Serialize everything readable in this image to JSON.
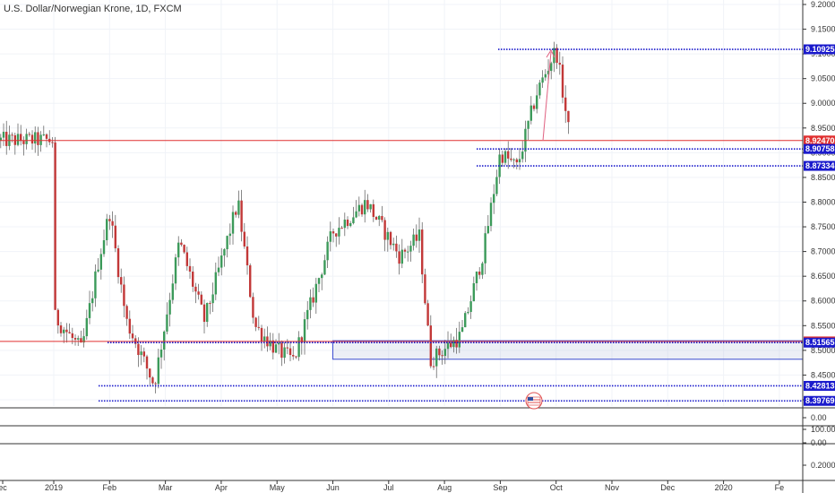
{
  "chart_data": {
    "type": "candlestick",
    "title": "U.S. Dollar/Norwegian Krone, 1D, FXCM",
    "ylim": [
      8.38,
      9.2
    ],
    "y_ticks": [
      "9.20000",
      "9.15000",
      "9.10000",
      "9.05000",
      "9.00000",
      "8.95000",
      "8.90000",
      "8.85000",
      "8.80000",
      "8.75000",
      "8.70000",
      "8.65000",
      "8.60000",
      "8.55000",
      "8.50000",
      "8.45000",
      "8.40000"
    ],
    "x_ticks": [
      "ec",
      "2019",
      "Feb",
      "Mar",
      "Apr",
      "May",
      "Jun",
      "Jul",
      "Aug",
      "Sep",
      "Oct",
      "Nov",
      "Dec",
      "2020",
      "Fe"
    ],
    "horizontal_lines": [
      {
        "label": "9.10925",
        "value": 9.10925,
        "color": "#1a1acc",
        "style": "dotted"
      },
      {
        "label": "8.92470",
        "value": 8.9247,
        "color": "#e03030",
        "style": "solid"
      },
      {
        "label": "8.90758",
        "value": 8.90758,
        "color": "#1a1acc",
        "style": "dotted"
      },
      {
        "label": "8.87334",
        "value": 8.87334,
        "color": "#1a1acc",
        "style": "dotted"
      },
      {
        "label": "8.51802",
        "value": 8.51802,
        "color": "#e03030",
        "style": "solid"
      },
      {
        "label": "8.51565",
        "value": 8.51565,
        "color": "#1a1acc",
        "style": "dotted"
      },
      {
        "label": "8.42813",
        "value": 8.42813,
        "color": "#1a1acc",
        "style": "dotted"
      },
      {
        "label": "8.39769",
        "value": 8.39769,
        "color": "#1a1acc",
        "style": "dotted"
      }
    ],
    "zone": {
      "from": 8.482,
      "to": 8.5195,
      "start_month": 5.0
    },
    "indicator_panes": [
      {
        "tick": "0.00"
      },
      {
        "tick": "100.00"
      },
      {
        "tick": "0.00"
      },
      {
        "tick": "0.20000"
      }
    ],
    "anchors": [
      {
        "t": 0.0,
        "v": 8.57
      },
      {
        "t": 0.5,
        "v": 8.5
      },
      {
        "t": 0.8,
        "v": 8.68
      },
      {
        "t": 1.0,
        "v": 8.78
      },
      {
        "t": 1.3,
        "v": 8.56
      },
      {
        "t": 1.8,
        "v": 8.43
      },
      {
        "t": 2.25,
        "v": 8.72
      },
      {
        "t": 2.7,
        "v": 8.56
      },
      {
        "t": 3.3,
        "v": 8.8
      },
      {
        "t": 3.6,
        "v": 8.55
      },
      {
        "t": 4.0,
        "v": 8.5
      },
      {
        "t": 4.3,
        "v": 8.48
      },
      {
        "t": 5.0,
        "v": 8.74
      },
      {
        "t": 5.6,
        "v": 8.8
      },
      {
        "t": 6.2,
        "v": 8.69
      },
      {
        "t": 6.55,
        "v": 8.73
      },
      {
        "t": 6.75,
        "v": 8.48
      },
      {
        "t": 7.3,
        "v": 8.53
      },
      {
        "t": 7.7,
        "v": 8.7
      },
      {
        "t": 8.0,
        "v": 8.9
      },
      {
        "t": 8.3,
        "v": 8.87
      },
      {
        "t": 8.65,
        "v": 9.02
      },
      {
        "t": 9.0,
        "v": 9.11
      },
      {
        "t": 9.25,
        "v": 8.925
      }
    ]
  }
}
